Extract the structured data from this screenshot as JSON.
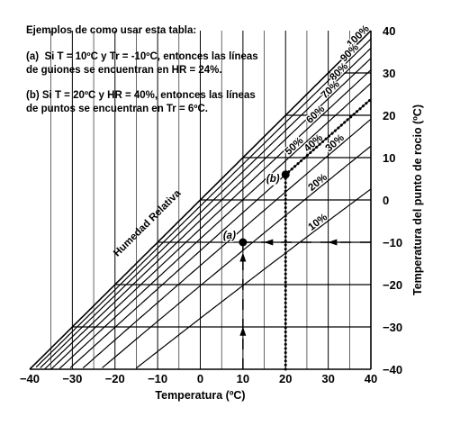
{
  "instructions": {
    "heading": "Ejemplos de como usar esta tabla:",
    "example_a_line1": "(a)  Si T = 10ºC y Tr = -10ºC, entonces las líneas",
    "example_a_line2": "de guiones se encuentran en HR = 24%.",
    "example_b_line1": "(b) Si T = 20ºC y HR = 40%, entonces las líneas",
    "example_b_line2": "de puntos se encuentran en Tr = 6ºC."
  },
  "chart_data": {
    "type": "nomogram",
    "xlabel": "Temperatura (ºC)",
    "ylabel": "Temperatura del punto de rocio (ºC)",
    "rh_label": "Humedad Relativa",
    "xlim": [
      -40,
      40
    ],
    "ylim": [
      -40,
      40
    ],
    "x_ticks": [
      "−40",
      "−30",
      "−20",
      "−10",
      "0",
      "10",
      "20",
      "30",
      "40"
    ],
    "y_ticks": [
      {
        "v": 40,
        "label": "40"
      },
      {
        "v": 30,
        "label": "30"
      },
      {
        "v": 20,
        "label": "20"
      },
      {
        "v": 10,
        "label": "10"
      },
      {
        "v": 0,
        "label": "0"
      },
      {
        "v": -10,
        "label": "−10"
      },
      {
        "v": -20,
        "label": "−20"
      },
      {
        "v": -30,
        "label": "−30"
      },
      {
        "v": -40,
        "label": "−40"
      }
    ],
    "rh_curves": [
      {
        "rh": 100,
        "label": "100%"
      },
      {
        "rh": 90,
        "label": "90%"
      },
      {
        "rh": 80,
        "label": "80%"
      },
      {
        "rh": 70,
        "label": "70%"
      },
      {
        "rh": 60,
        "label": "60%"
      },
      {
        "rh": 50,
        "label": "50%"
      },
      {
        "rh": 40,
        "label": "40%"
      },
      {
        "rh": 30,
        "label": "30%"
      },
      {
        "rh": 20,
        "label": "20%"
      },
      {
        "rh": 10,
        "label": "10%"
      }
    ],
    "example_a": {
      "label": "(a)",
      "T": 10,
      "Td": -10,
      "RH": 24
    },
    "example_b": {
      "label": "(b)",
      "T": 20,
      "Td": 6,
      "RH": 40
    },
    "grid": true
  }
}
